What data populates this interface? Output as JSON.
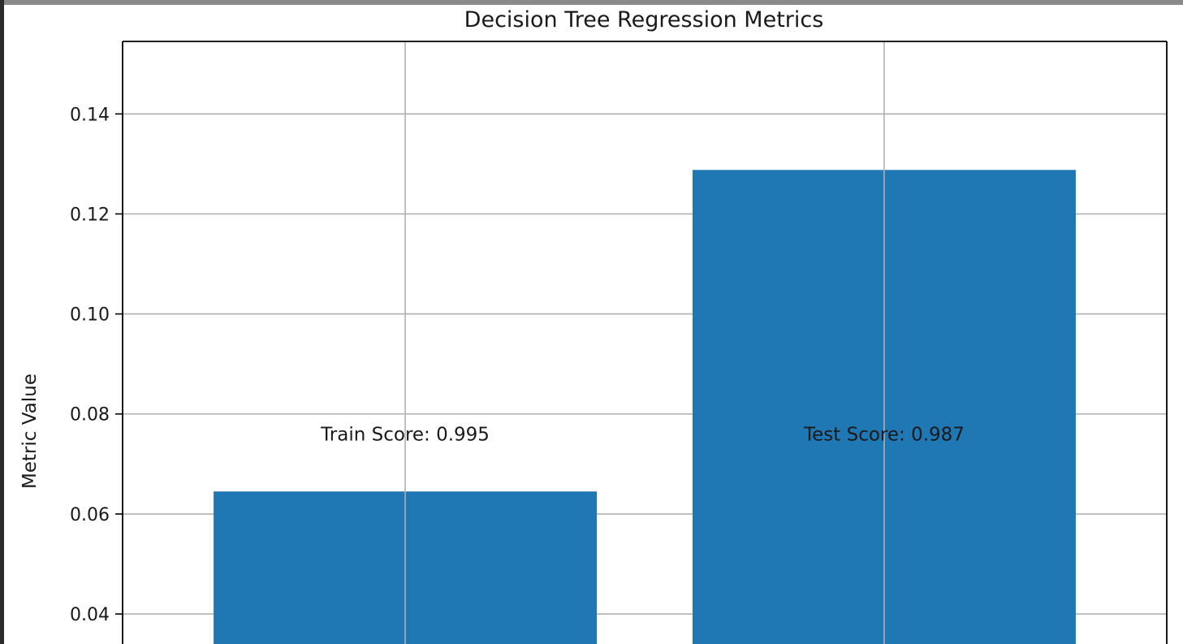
{
  "chart_data": {
    "type": "bar",
    "title": "Decision Tree Regression Metrics",
    "xlabel": "",
    "ylabel": "Metric Value",
    "categories": [
      "",
      ""
    ],
    "values": [
      0.0645,
      0.1288
    ],
    "ylim": [
      0.034,
      0.1545
    ],
    "yticks": [
      "0.04",
      "0.06",
      "0.08",
      "0.10",
      "0.12",
      "0.14"
    ],
    "ytick_values": [
      0.04,
      0.06,
      0.08,
      0.1,
      0.12,
      0.14
    ],
    "grid": true,
    "annotations": [
      {
        "text": "Train Score: 0.995",
        "bar": 0,
        "y": 0.076
      },
      {
        "text": "Test Score: 0.987",
        "bar": 1,
        "y": 0.076
      }
    ],
    "colors": {
      "bar": "#1f77b4",
      "grid": "#b0b0b0",
      "axis": "#000000",
      "frame_top": "#8a8a8a",
      "frame_left": "#2b2b2b"
    }
  }
}
